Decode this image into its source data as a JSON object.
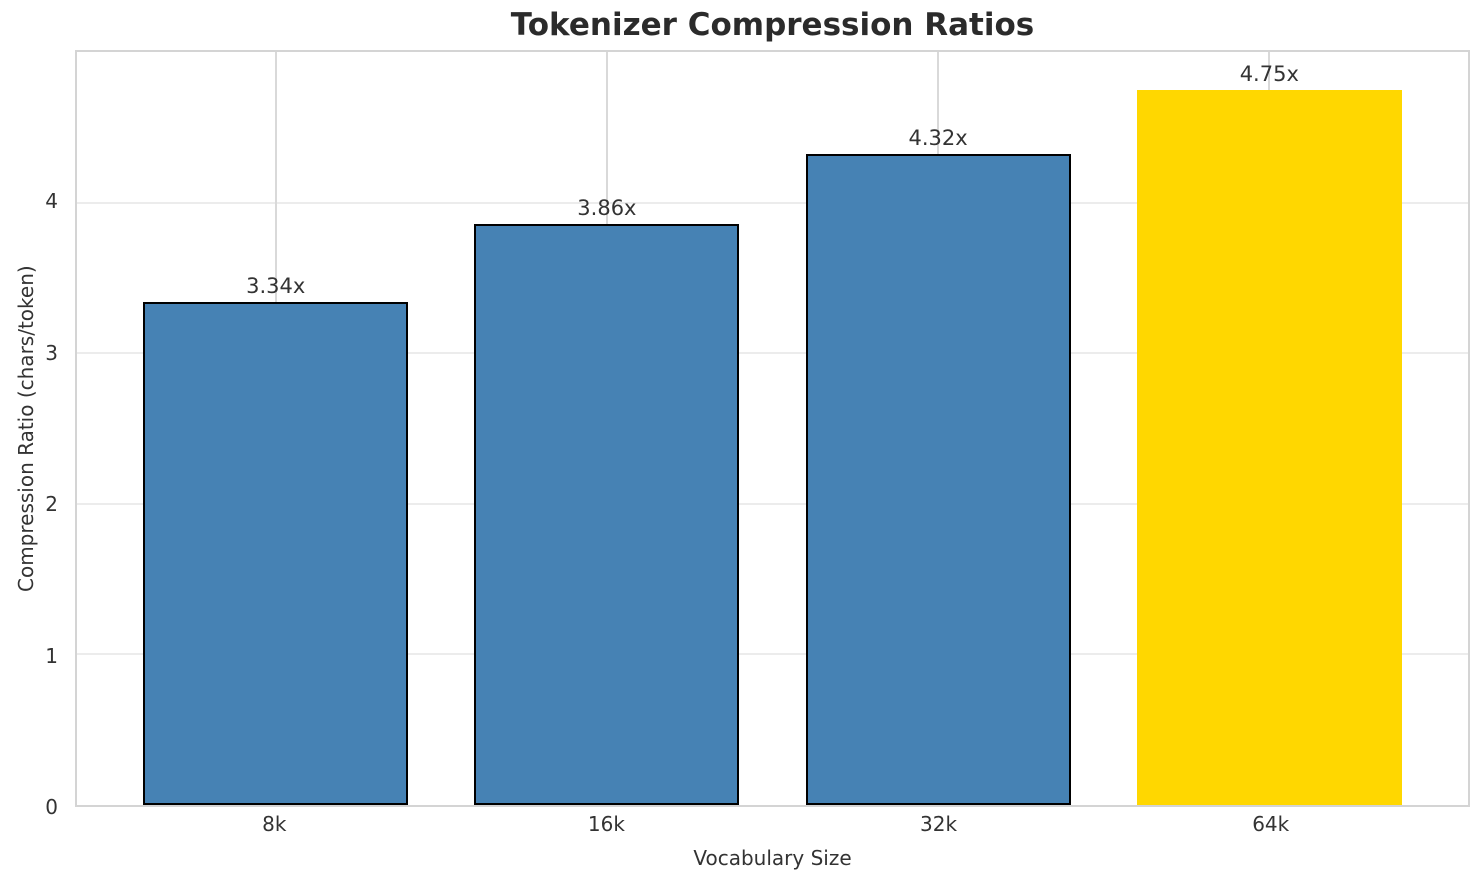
{
  "chart_data": {
    "type": "bar",
    "title": "Tokenizer Compression Ratios",
    "xlabel": "Vocabulary Size",
    "ylabel": "Compression Ratio (chars/token)",
    "categories": [
      "8k",
      "16k",
      "32k",
      "64k"
    ],
    "values": [
      3.34,
      3.86,
      4.32,
      4.75
    ],
    "bar_labels": [
      "3.34x",
      "3.86x",
      "4.32x",
      "4.75x"
    ],
    "bar_colors": [
      "#4682B4",
      "#4682B4",
      "#4682B4",
      "#FFD700"
    ],
    "bar_edge_colors": [
      "#000000",
      "#000000",
      "#000000",
      "none"
    ],
    "highlighted_category": "64k",
    "yticks": [
      0,
      1,
      2,
      3,
      4
    ],
    "ylim": [
      0,
      5
    ],
    "xlim": [
      -0.6,
      3.6
    ],
    "bar_width": 0.8,
    "grid": true,
    "legend": "none",
    "background_color": "#ffffff",
    "grid_color_vertical": "#d9d9d9",
    "grid_color_horizontal": "#ececec",
    "spine_color": "#d4d4d4"
  }
}
